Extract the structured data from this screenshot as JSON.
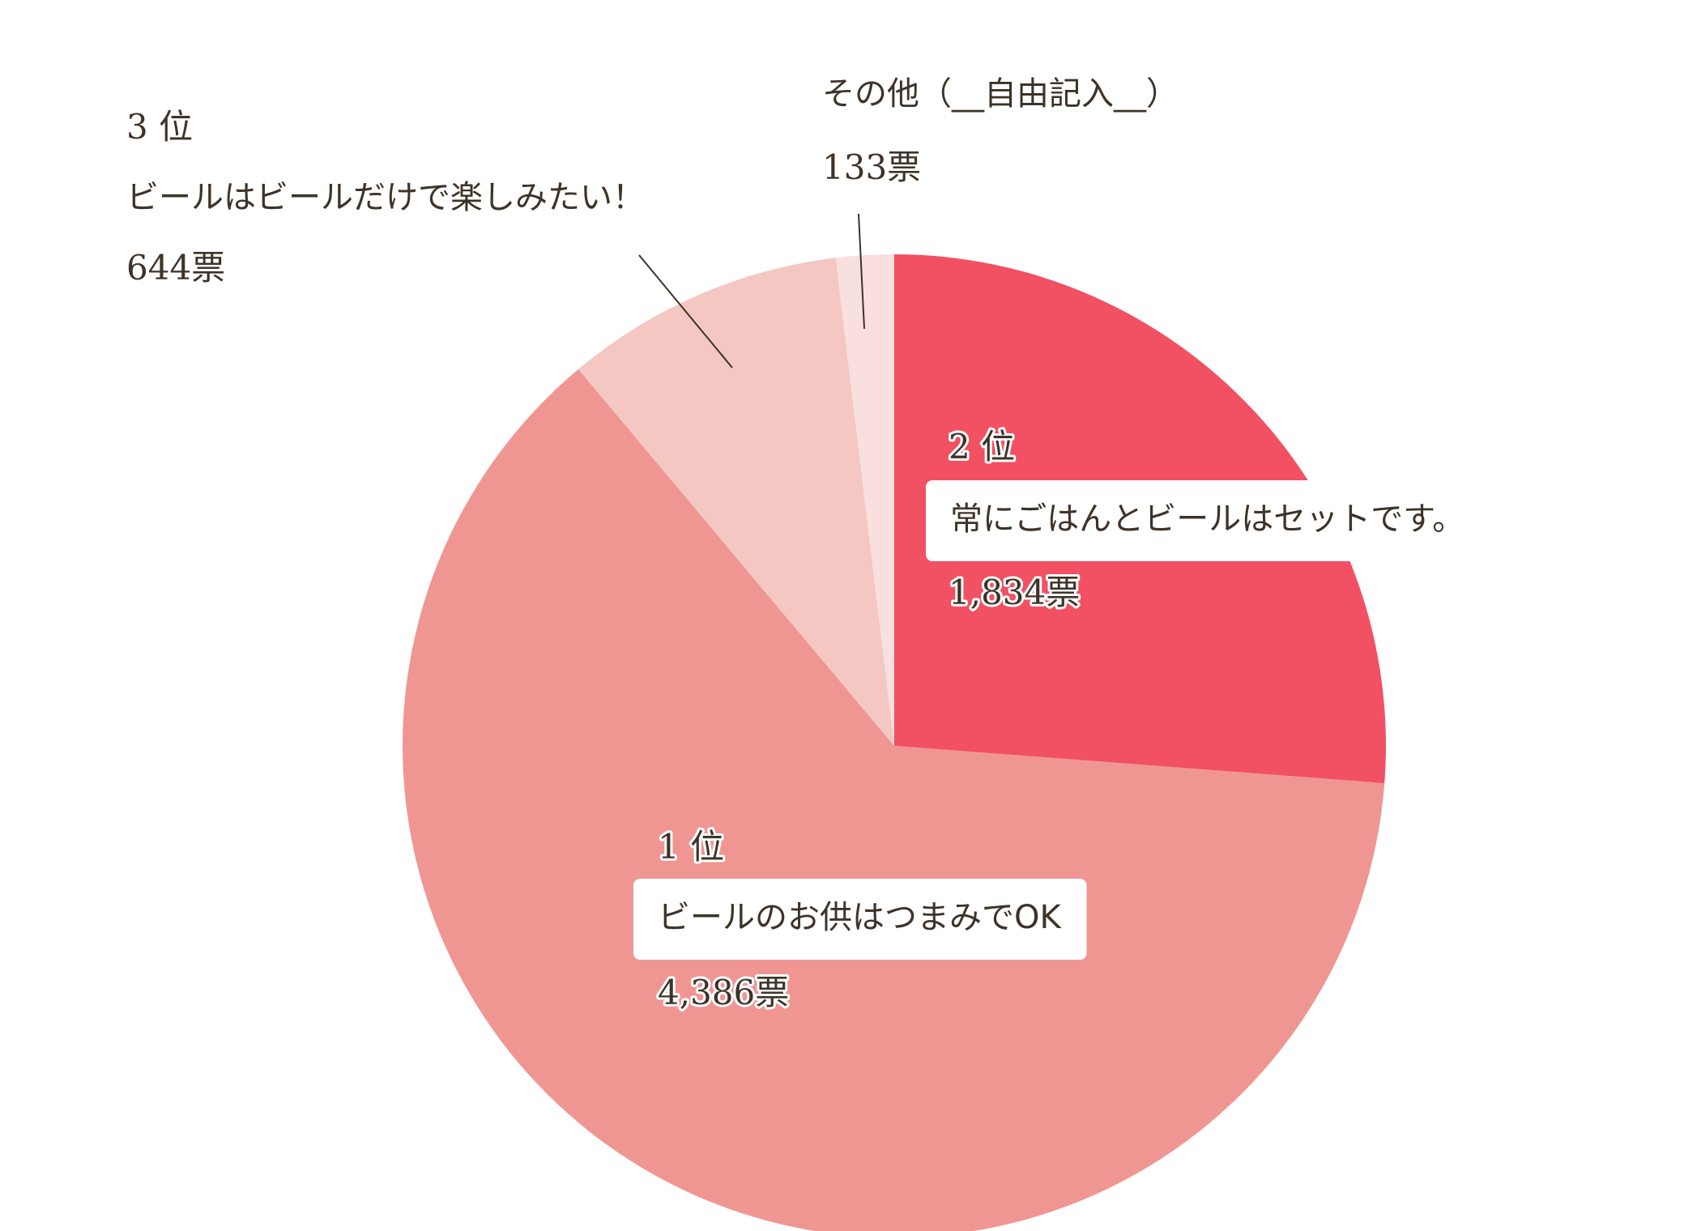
{
  "chart_data": {
    "type": "pie",
    "categories": [
      "常にごはんとビールはセットです。",
      "ビールのお供はつまみでOK",
      "ビールはビールだけで楽しみたい！",
      "その他（__自由記入__）"
    ],
    "ranks": [
      "2 位",
      "1 位",
      "3 位",
      null
    ],
    "values": [
      1834,
      4386,
      644,
      133
    ],
    "value_labels": [
      "1,834票",
      "4,386票",
      "644票",
      "133票"
    ],
    "colors": [
      "#f25063",
      "#ef9693",
      "#f4c7c3",
      "#f9e0df"
    ]
  }
}
